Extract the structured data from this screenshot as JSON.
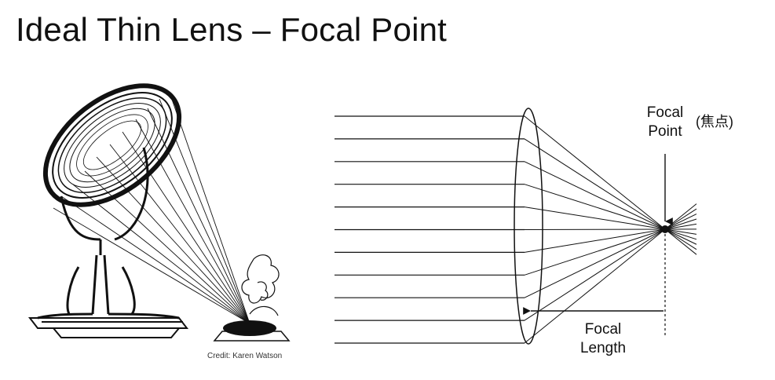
{
  "slide": {
    "title": "Ideal Thin Lens – Focal Point",
    "credit": "Credit: Karen Watson",
    "labels": {
      "focal_point_line1": "Focal",
      "focal_point_line2": "Point",
      "focal_point_japanese": "(焦点)",
      "focal_length_line1": "Focal",
      "focal_length_line2": "Length"
    }
  },
  "diagram": {
    "ray_count": 11,
    "colors": {
      "line": "#111111",
      "background": "#ffffff"
    }
  }
}
